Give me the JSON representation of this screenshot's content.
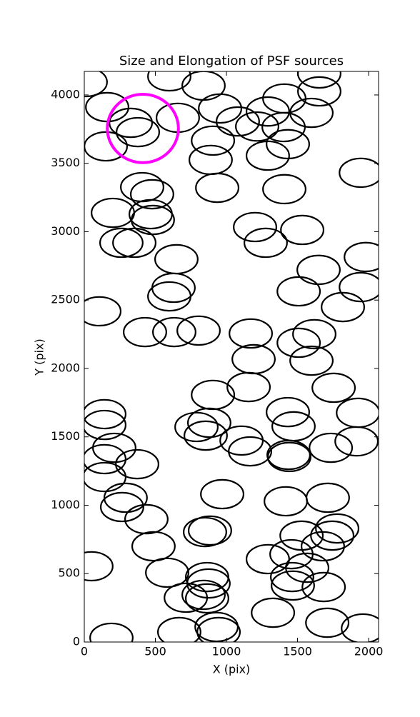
{
  "chart_data": {
    "type": "ellipse",
    "title": "Size and Elongation of PSF sources",
    "x_label": "X (pix)",
    "y_label": "Y (pix)",
    "xlim": [
      0,
      2070
    ],
    "ylim": [
      0,
      4172
    ],
    "xticks": [
      0,
      500,
      1000,
      1500,
      2000
    ],
    "yticks": [
      0,
      500,
      1000,
      1500,
      2000,
      2500,
      3000,
      3500,
      4000
    ],
    "width": 300,
    "height": 210,
    "color": "#000000",
    "x": [
      10,
      598,
      839,
      1653,
      1653,
      1407,
      955,
      1080,
      1291,
      1598,
      161,
      327,
      377,
      658,
      1216,
      1402,
      151,
      905,
      1432,
      889,
      1291,
      935,
      1407,
      1945,
      407,
      477,
      201,
      467,
      482,
      1201,
      1533,
      1276,
      261,
      352,
      648,
      1980,
      1648,
      628,
      598,
      1508,
      1945,
      1819,
      106,
      427,
      633,
      804,
      1171,
      1618,
      1508,
      1191,
      1598,
      1156,
      905,
      1754,
      1925,
      141,
      141,
      1432,
      1472,
      789,
      879,
      854,
      1106,
      1166,
      1437,
      1442,
      1734,
      1915,
      211,
      141,
      372,
      141,
      970,
      291,
      266,
      1713,
      1417,
      437,
      884,
      849,
      1779,
      1744,
      1528,
      487,
      1678,
      1457,
      1291,
      583,
      1568,
      50,
      864,
      874,
      1462,
      1467,
      1684,
      714,
      839,
      864,
      1327,
      1709,
      930,
      945,
      1960,
      668,
      191
    ],
    "y": [
      4094,
      4136,
      4068,
      4157,
      4026,
      3974,
      3901,
      3806,
      3879,
      3869,
      3911,
      3796,
      3728,
      3833,
      3769,
      3765,
      3624,
      3666,
      3640,
      3525,
      3556,
      3321,
      3311,
      3431,
      3326,
      3274,
      3138,
      3128,
      3086,
      3034,
      3013,
      2919,
      2919,
      2919,
      2799,
      2815,
      2721,
      2590,
      2527,
      2564,
      2595,
      2449,
      2418,
      2266,
      2266,
      2277,
      2256,
      2251,
      2188,
      2068,
      2057,
      1864,
      1807,
      1859,
      1676,
      1666,
      1587,
      1681,
      1577,
      1572,
      1603,
      1509,
      1473,
      1394,
      1368,
      1353,
      1420,
      1467,
      1420,
      1337,
      1300,
      1206,
      1081,
      1055,
      987,
      1055,
      1029,
      898,
      815,
      804,
      830,
      778,
      778,
      700,
      700,
      642,
      606,
      507,
      543,
      554,
      475,
      428,
      475,
      413,
      402,
      324,
      345,
      319,
      214,
      141,
      110,
      73,
      99,
      73,
      31
    ],
    "highlight": {
      "x": 412,
      "y": 3755,
      "radius": 250,
      "color": "#ff00ff"
    }
  }
}
